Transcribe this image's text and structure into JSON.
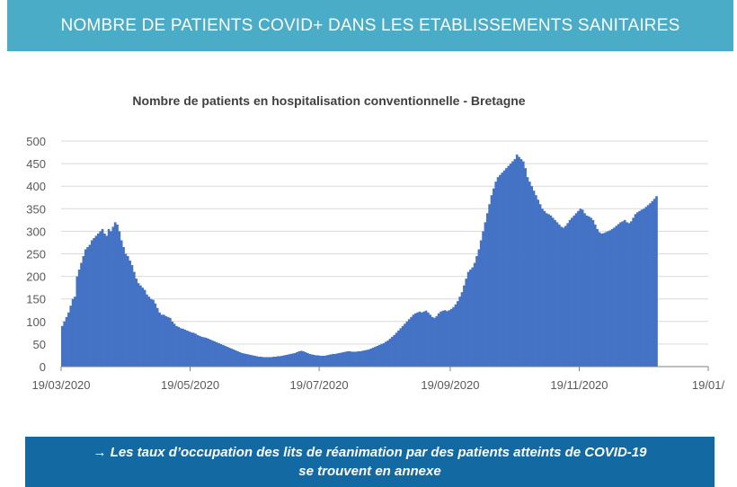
{
  "header": {
    "title": "NOMBRE DE PATIENTS COVID+ DANS LES ETABLISSEMENTS SANITAIRES"
  },
  "footer": {
    "line1": "→ Les taux d’occupation des lits de réanimation par des patients atteints de COVID-19",
    "line2": "se trouvent en annexe"
  },
  "chart_data": {
    "type": "bar",
    "title": "Nombre de patients en hospitalisation conventionnelle - Bretagne",
    "xlabel": "",
    "ylabel": "",
    "ylim": [
      0,
      500
    ],
    "yticks": [
      0,
      50,
      100,
      150,
      200,
      250,
      300,
      350,
      400,
      450,
      500
    ],
    "xticks": [
      "19/03/2020",
      "19/05/2020",
      "19/07/2020",
      "19/09/2020",
      "19/11/2020",
      "19/01/"
    ],
    "grid": true,
    "bar_color": "#4472c4",
    "series": [
      {
        "x_start": "19/03/2020",
        "interval": "day",
        "values": [
          90,
          100,
          110,
          120,
          135,
          150,
          155,
          200,
          215,
          230,
          245,
          260,
          265,
          270,
          280,
          285,
          290,
          295,
          300,
          305,
          295,
          290,
          305,
          300,
          310,
          320,
          315,
          300,
          280,
          265,
          250,
          245,
          235,
          225,
          210,
          195,
          185,
          180,
          175,
          170,
          160,
          155,
          150,
          148,
          140,
          130,
          120,
          115,
          115,
          112,
          110,
          108,
          100,
          95,
          90,
          88,
          85,
          84,
          82,
          80,
          78,
          76,
          75,
          73,
          70,
          68,
          66,
          65,
          64,
          62,
          60,
          58,
          56,
          54,
          52,
          50,
          48,
          46,
          44,
          42,
          40,
          38,
          36,
          34,
          32,
          30,
          29,
          28,
          27,
          26,
          25,
          24,
          23,
          22,
          22,
          21,
          21,
          21,
          21,
          21,
          22,
          22,
          23,
          23,
          24,
          25,
          26,
          27,
          28,
          29,
          30,
          32,
          34,
          35,
          34,
          32,
          30,
          28,
          27,
          26,
          25,
          25,
          24,
          24,
          24,
          25,
          26,
          27,
          28,
          28,
          29,
          30,
          31,
          32,
          33,
          34,
          34,
          33,
          33,
          33,
          34,
          34,
          35,
          36,
          37,
          38,
          40,
          42,
          44,
          46,
          48,
          50,
          52,
          55,
          58,
          62,
          66,
          70,
          75,
          80,
          85,
          90,
          95,
          100,
          105,
          110,
          115,
          118,
          120,
          122,
          120,
          122,
          124,
          120,
          115,
          110,
          108,
          112,
          118,
          122,
          124,
          125,
          123,
          125,
          128,
          132,
          138,
          145,
          155,
          165,
          180,
          195,
          210,
          215,
          220,
          230,
          245,
          260,
          280,
          300,
          320,
          340,
          360,
          380,
          395,
          410,
          420,
          425,
          430,
          435,
          440,
          445,
          450,
          455,
          460,
          470,
          465,
          460,
          455,
          440,
          420,
          410,
          400,
          390,
          380,
          370,
          360,
          350,
          345,
          340,
          338,
          335,
          330,
          325,
          320,
          315,
          310,
          308,
          312,
          318,
          325,
          330,
          335,
          340,
          345,
          350,
          348,
          340,
          335,
          333,
          330,
          325,
          315,
          305,
          298,
          295,
          296,
          298,
          300,
          302,
          305,
          308,
          312,
          316,
          320,
          322,
          325,
          320,
          318,
          322,
          330,
          338,
          342,
          345,
          348,
          350,
          354,
          358,
          362,
          367,
          372,
          378
        ]
      }
    ]
  }
}
